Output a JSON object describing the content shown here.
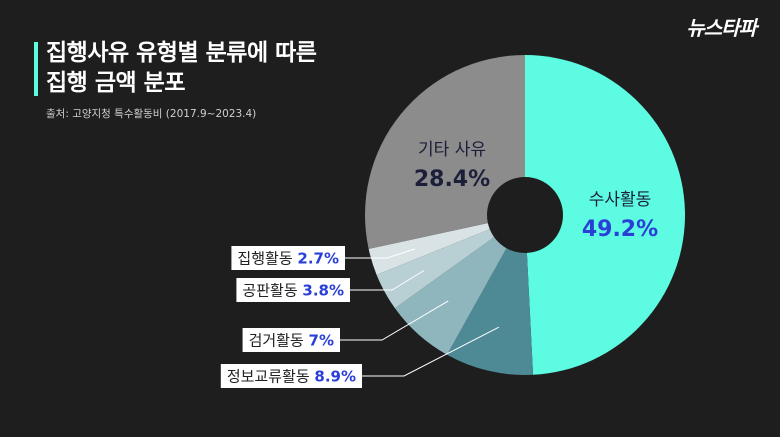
{
  "logo_text": "뉴스타파",
  "title_line1": "집행사유 유형별 분류에 따른",
  "title_line2": "집행 금액 분포",
  "source": "출처: 고양지청 특수활동비 (2017.9~2023.4)",
  "colors": {
    "background": "#1e1e1e",
    "accent": "#5dfbe1",
    "label_value": "#2a3fd8"
  },
  "chart_data": {
    "type": "pie",
    "donut": true,
    "title": "집행사유 유형별 분류에 따른 집행 금액 분포",
    "slices": [
      {
        "label": "수사활동",
        "value": 49.2,
        "value_text": "49.2%",
        "color": "#5dfbe1"
      },
      {
        "label": "정보교류활동",
        "value": 8.9,
        "value_text": "8.9%",
        "color": "#4d8a95"
      },
      {
        "label": "검거활동",
        "value": 7,
        "value_text": "7%",
        "color": "#8fb5bd"
      },
      {
        "label": "공판활동",
        "value": 3.8,
        "value_text": "3.8%",
        "color": "#b8cfd3"
      },
      {
        "label": "집행활동",
        "value": 2.7,
        "value_text": "2.7%",
        "color": "#d9e3e5"
      },
      {
        "label": "기타 사유",
        "value": 28.4,
        "value_text": "28.4%",
        "color": "#8c8c8c"
      }
    ]
  }
}
